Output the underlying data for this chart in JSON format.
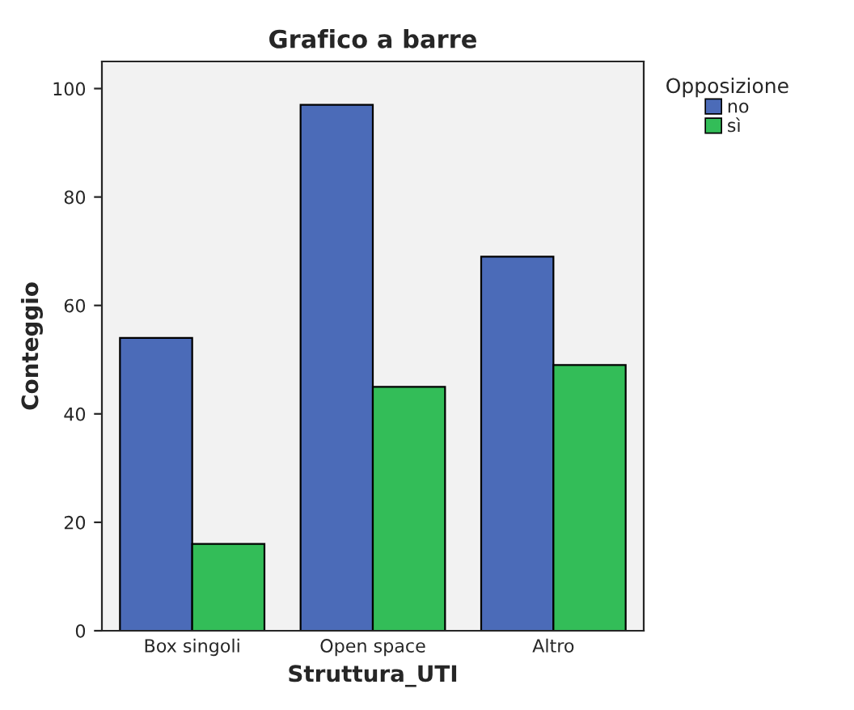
{
  "chart_data": {
    "type": "bar",
    "title": "Grafico a barre",
    "xlabel": "Struttura_UTI",
    "ylabel": "Conteggio",
    "legend_title": "Opposizione",
    "categories": [
      "Box singoli",
      "Open space",
      "Altro"
    ],
    "series": [
      {
        "name": "no",
        "color": "#4b6bb8",
        "values": [
          54,
          97,
          69
        ]
      },
      {
        "name": "sì",
        "color": "#33bd58",
        "values": [
          16,
          45,
          49
        ]
      }
    ],
    "ylim": [
      0,
      105
    ],
    "yticks": [
      0,
      20,
      40,
      60,
      80,
      100
    ],
    "grid": false,
    "legend": "top right"
  }
}
